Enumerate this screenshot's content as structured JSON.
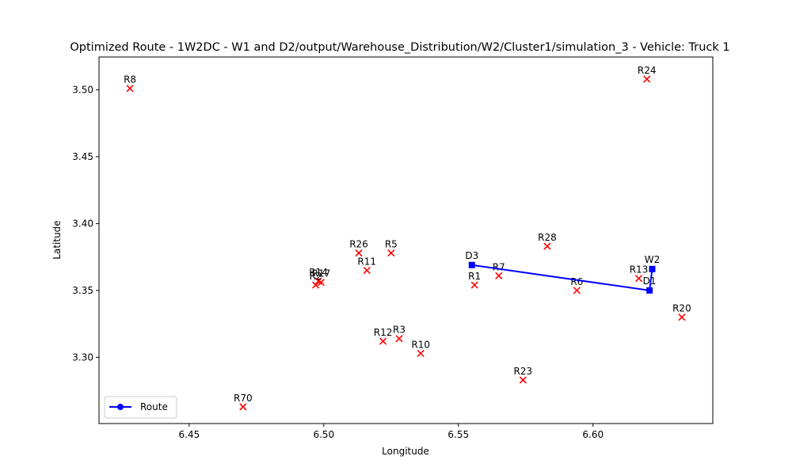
{
  "chart_data": {
    "type": "scatter",
    "title": "Optimized Route - 1W2DC - W1 and D2/output/Warehouse_Distribution/W2/Cluster1/simulation_3 - Vehicle: Truck 1",
    "xlabel": "Longitude",
    "ylabel": "Latitude",
    "xlim": [
      6.4165,
      6.6445
    ],
    "ylim": [
      3.2505,
      3.5245
    ],
    "xticks": [
      "6.45",
      "6.50",
      "6.55",
      "6.60"
    ],
    "yticks": [
      "3.30",
      "3.35",
      "3.40",
      "3.45",
      "3.50"
    ],
    "xtick_values": [
      6.45,
      6.5,
      6.55,
      6.6
    ],
    "ytick_values": [
      3.3,
      3.35,
      3.4,
      3.45,
      3.5
    ],
    "grid": false,
    "legend_position": "bottom-left",
    "points": [
      {
        "label": "R8",
        "x": 6.428,
        "y": 3.501
      },
      {
        "label": "R24",
        "x": 6.62,
        "y": 3.508
      },
      {
        "label": "R26",
        "x": 6.513,
        "y": 3.378
      },
      {
        "label": "R5",
        "x": 6.525,
        "y": 3.378
      },
      {
        "label": "R28",
        "x": 6.583,
        "y": 3.383
      },
      {
        "label": "R11",
        "x": 6.516,
        "y": 3.365
      },
      {
        "label": "R14",
        "x": 6.498,
        "y": 3.357
      },
      {
        "label": "R17",
        "x": 6.499,
        "y": 3.356
      },
      {
        "label": "R2",
        "x": 6.497,
        "y": 3.354
      },
      {
        "label": "R7",
        "x": 6.565,
        "y": 3.361
      },
      {
        "label": "R1",
        "x": 6.556,
        "y": 3.354
      },
      {
        "label": "R6",
        "x": 6.594,
        "y": 3.35
      },
      {
        "label": "R13",
        "x": 6.617,
        "y": 3.359
      },
      {
        "label": "R20",
        "x": 6.633,
        "y": 3.33
      },
      {
        "label": "R12",
        "x": 6.522,
        "y": 3.312
      },
      {
        "label": "R3",
        "x": 6.528,
        "y": 3.314
      },
      {
        "label": "R10",
        "x": 6.536,
        "y": 3.303
      },
      {
        "label": "R23",
        "x": 6.574,
        "y": 3.283
      },
      {
        "label": "R70",
        "x": 6.47,
        "y": 3.263
      }
    ],
    "route": {
      "name": "Route",
      "color": "#0000ff",
      "points": [
        {
          "label": "D3",
          "x": 6.555,
          "y": 3.369
        },
        {
          "label": "D1",
          "x": 6.621,
          "y": 3.35
        },
        {
          "label": "W2",
          "x": 6.622,
          "y": 3.366
        }
      ]
    },
    "marker_color": "#ff0000"
  }
}
